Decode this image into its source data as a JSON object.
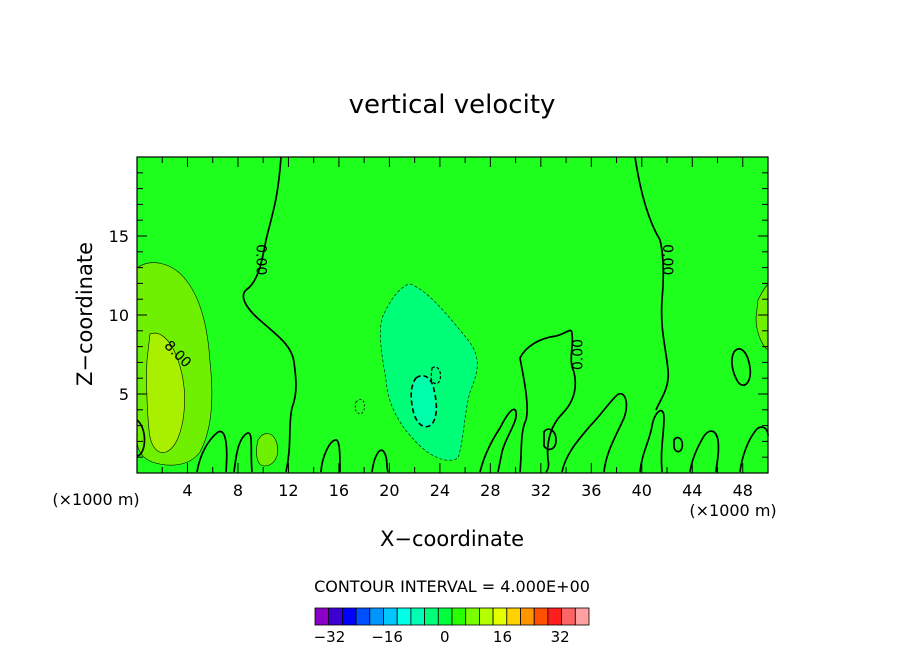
{
  "chart_data": {
    "type": "heatmap",
    "title": "vertical velocity",
    "xlabel": "X−coordinate",
    "ylabel": "Z−coordinate",
    "x_unit": "(×1000 m)",
    "y_unit": "(×1000 m)",
    "xlim": [
      0,
      50
    ],
    "ylim": [
      0,
      20
    ],
    "x_ticks": [
      4,
      8,
      12,
      16,
      20,
      24,
      28,
      32,
      36,
      40,
      44,
      48
    ],
    "y_ticks": [
      5,
      10,
      15
    ],
    "contour_interval_text": "CONTOUR INTERVAL = 4.000E+00",
    "contour_interval": 4.0,
    "contour_labels": [
      {
        "text": "0.00",
        "x": 9.8,
        "z": 13.5
      },
      {
        "text": "8.00",
        "x": 3.2,
        "z": 7.5
      },
      {
        "text": "0.00",
        "x": 35.0,
        "z": 7.5
      },
      {
        "text": "0.00",
        "x": 42.0,
        "z": 13.5
      }
    ],
    "colorbar": {
      "levels": [
        -36,
        -32,
        -28,
        -24,
        -20,
        -16,
        -12,
        -8,
        -4,
        0,
        4,
        8,
        12,
        16,
        20,
        24,
        28,
        32,
        36,
        40
      ],
      "tick_labels": [
        "−32",
        "−16",
        "0",
        "16",
        "32"
      ],
      "tick_values": [
        -32,
        -16,
        0,
        16,
        32
      ],
      "colors": [
        "#8a00c8",
        "#3c00d2",
        "#0000ff",
        "#0050ff",
        "#0096ff",
        "#00c8ff",
        "#00ffe6",
        "#00ffb4",
        "#00ff78",
        "#00ff3c",
        "#28ff00",
        "#78ff00",
        "#b4ff00",
        "#e6ff00",
        "#ffd200",
        "#ff9600",
        "#ff5000",
        "#ff1e1e",
        "#ff6464",
        "#ffa0a0"
      ]
    },
    "regions": [
      {
        "level": 0,
        "color": "#1eff1e",
        "desc": "background"
      },
      {
        "level": 4,
        "color": "#6ef000"
      },
      {
        "level": 8,
        "color": "#a8f000"
      },
      {
        "level": -4,
        "color": "#00ff78"
      },
      {
        "level": -8,
        "color": "#00ffaa"
      }
    ]
  }
}
